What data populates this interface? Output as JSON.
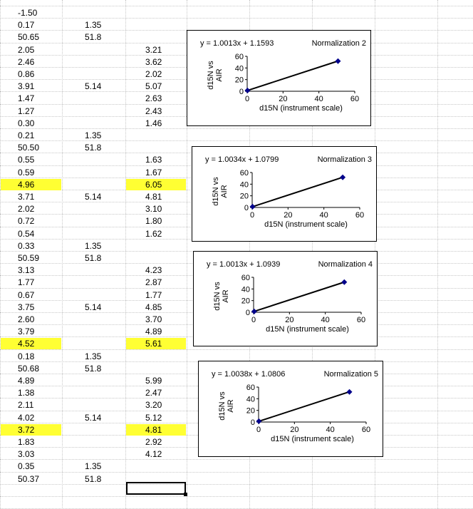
{
  "spreadsheet": {
    "rows": [
      {
        "a": "-1.50",
        "b": "",
        "c": ""
      },
      {
        "a": "0.17",
        "b": "1.35",
        "c": ""
      },
      {
        "a": "50.65",
        "b": "51.8",
        "c": ""
      },
      {
        "a": "2.05",
        "b": "",
        "c": "3.21"
      },
      {
        "a": "2.46",
        "b": "",
        "c": "3.62"
      },
      {
        "a": "0.86",
        "b": "",
        "c": "2.02"
      },
      {
        "a": "3.91",
        "b": "5.14",
        "c": "5.07"
      },
      {
        "a": "1.47",
        "b": "",
        "c": "2.63"
      },
      {
        "a": "1.27",
        "b": "",
        "c": "2.43"
      },
      {
        "a": "0.30",
        "b": "",
        "c": "1.46"
      },
      {
        "a": "0.21",
        "b": "1.35",
        "c": ""
      },
      {
        "a": "50.50",
        "b": "51.8",
        "c": ""
      },
      {
        "a": "0.55",
        "b": "",
        "c": "1.63"
      },
      {
        "a": "0.59",
        "b": "",
        "c": "1.67"
      },
      {
        "a": "4.96",
        "b": "",
        "c": "6.05",
        "highlight": true
      },
      {
        "a": "3.71",
        "b": "5.14",
        "c": "4.81"
      },
      {
        "a": "2.02",
        "b": "",
        "c": "3.10"
      },
      {
        "a": "0.72",
        "b": "",
        "c": "1.80"
      },
      {
        "a": "0.54",
        "b": "",
        "c": "1.62"
      },
      {
        "a": "0.33",
        "b": "1.35",
        "c": ""
      },
      {
        "a": "50.59",
        "b": "51.8",
        "c": ""
      },
      {
        "a": "3.13",
        "b": "",
        "c": "4.23"
      },
      {
        "a": "1.77",
        "b": "",
        "c": "2.87"
      },
      {
        "a": "0.67",
        "b": "",
        "c": "1.77"
      },
      {
        "a": "3.75",
        "b": "5.14",
        "c": "4.85"
      },
      {
        "a": "2.60",
        "b": "",
        "c": "3.70"
      },
      {
        "a": "3.79",
        "b": "",
        "c": "4.89"
      },
      {
        "a": "4.52",
        "b": "",
        "c": "5.61",
        "highlight": true
      },
      {
        "a": "0.18",
        "b": "1.35",
        "c": ""
      },
      {
        "a": "50.68",
        "b": "51.8",
        "c": ""
      },
      {
        "a": "4.89",
        "b": "",
        "c": "5.99"
      },
      {
        "a": "1.38",
        "b": "",
        "c": "2.47"
      },
      {
        "a": "2.11",
        "b": "",
        "c": "3.20"
      },
      {
        "a": "4.02",
        "b": "5.14",
        "c": "5.12"
      },
      {
        "a": "3.72",
        "b": "",
        "c": "4.81",
        "highlight": true
      },
      {
        "a": "1.83",
        "b": "",
        "c": "2.92"
      },
      {
        "a": "3.03",
        "b": "",
        "c": "4.12"
      },
      {
        "a": "0.35",
        "b": "1.35",
        "c": ""
      },
      {
        "a": "50.37",
        "b": "51.8",
        "c": ""
      }
    ],
    "highlight_color": "#ffff33"
  },
  "chart_data": [
    {
      "type": "scatter",
      "title": "Normalization 2",
      "equation": "y = 1.0013x + 1.1593",
      "xlabel": "d15N (instrument scale)",
      "ylabel_lines": [
        "d15N vs",
        "AIR"
      ],
      "xlim": [
        0,
        60
      ],
      "ylim": [
        0,
        60
      ],
      "xticks": [
        0,
        20,
        40,
        60
      ],
      "yticks": [
        0,
        20,
        40,
        60
      ],
      "points": [
        [
          0.17,
          1.35
        ],
        [
          50.65,
          51.8
        ]
      ],
      "trend": {
        "slope": 1.0013,
        "intercept": 1.1593
      },
      "marker_color": "#00008b"
    },
    {
      "type": "scatter",
      "title": "Normalization 3",
      "equation": "y = 1.0034x + 1.0799",
      "xlabel": "d15N (instrument scale)",
      "ylabel_lines": [
        "d15N vs",
        "AIR"
      ],
      "xlim": [
        0,
        60
      ],
      "ylim": [
        0,
        60
      ],
      "xticks": [
        0,
        20,
        40,
        60
      ],
      "yticks": [
        0,
        20,
        40,
        60
      ],
      "points": [
        [
          0.21,
          1.35
        ],
        [
          50.5,
          51.8
        ]
      ],
      "trend": {
        "slope": 1.0034,
        "intercept": 1.0799
      },
      "marker_color": "#00008b"
    },
    {
      "type": "scatter",
      "title": "Normalization 4",
      "equation": "y = 1.0013x + 1.0939",
      "xlabel": "d15N (instrument scale)",
      "ylabel_lines": [
        "d15N vs",
        "AIR"
      ],
      "xlim": [
        0,
        60
      ],
      "ylim": [
        0,
        60
      ],
      "xticks": [
        0,
        20,
        40,
        60
      ],
      "yticks": [
        0,
        20,
        40,
        60
      ],
      "points": [
        [
          0.33,
          1.35
        ],
        [
          50.59,
          51.8
        ]
      ],
      "trend": {
        "slope": 1.0013,
        "intercept": 1.0939
      },
      "marker_color": "#00008b"
    },
    {
      "type": "scatter",
      "title": "Normalization 5",
      "equation": "y = 1.0038x + 1.0806",
      "xlabel": "d15N (instrument scale)",
      "ylabel_lines": [
        "d15N vs",
        "AIR"
      ],
      "xlim": [
        0,
        60
      ],
      "ylim": [
        0,
        60
      ],
      "xticks": [
        0,
        20,
        40,
        60
      ],
      "yticks": [
        0,
        20,
        40,
        60
      ],
      "points": [
        [
          0.18,
          1.35
        ],
        [
          50.68,
          51.8
        ]
      ],
      "trend": {
        "slope": 1.0038,
        "intercept": 1.0806
      },
      "marker_color": "#00008b"
    }
  ]
}
